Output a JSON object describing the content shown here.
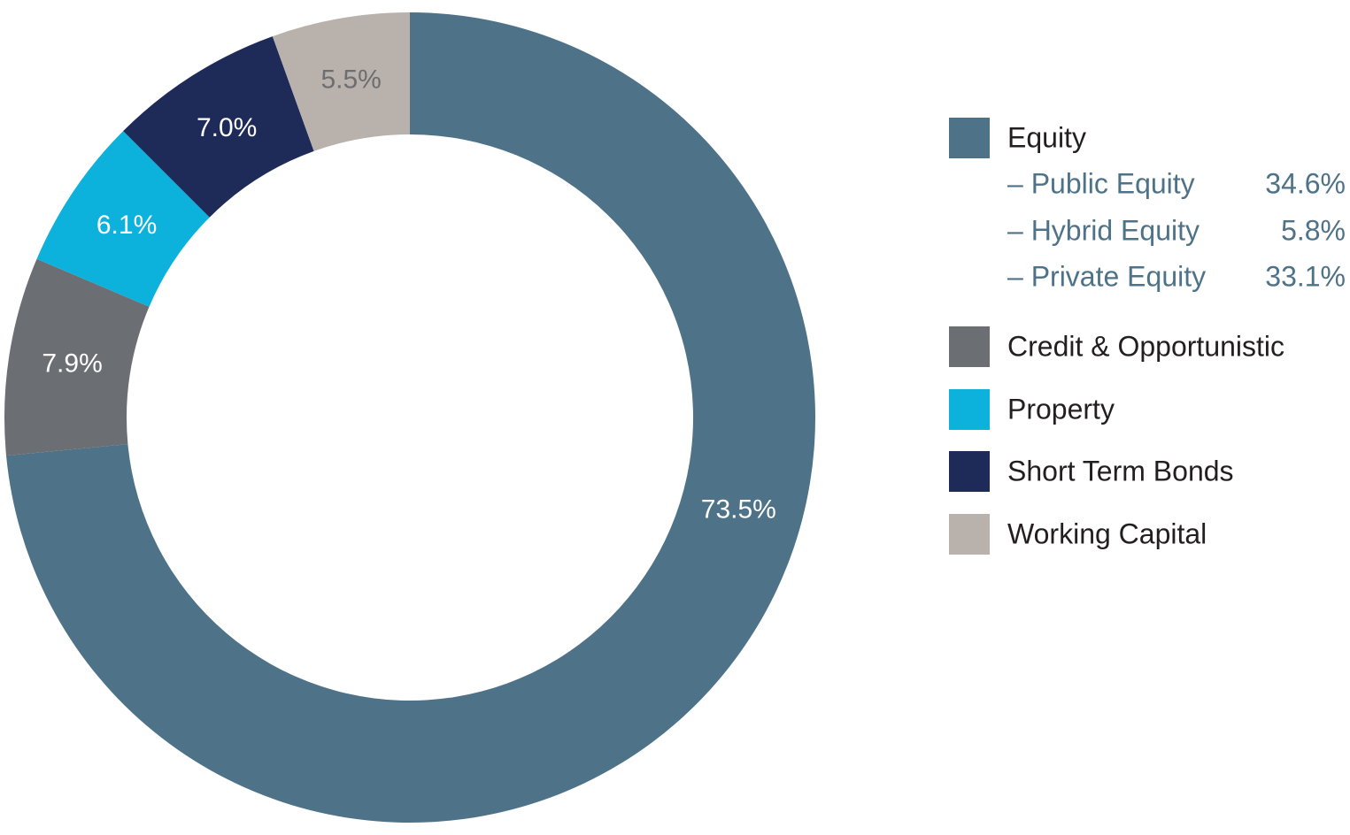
{
  "chart_data": {
    "type": "donut",
    "categories": [
      "Equity",
      "Credit & Opportunistic",
      "Property",
      "Short Term Bonds",
      "Working Capital"
    ],
    "values": [
      73.5,
      7.9,
      6.1,
      7.0,
      5.5
    ],
    "value_labels": [
      "73.5%",
      "7.9%",
      "6.1%",
      "7.0%",
      "5.5%"
    ],
    "colors": [
      "#4e7287",
      "#6b6e73",
      "#0cb1dc",
      "#1e2b59",
      "#b9b1ac"
    ],
    "label_colors": [
      "#ffffff",
      "#ffffff",
      "#ffffff",
      "#ffffff",
      "#6d6e70"
    ],
    "equity_breakdown": {
      "names": [
        "– Public Equity",
        "– Hybrid Equity",
        "– Private Equity"
      ],
      "values": [
        34.6,
        5.8,
        33.1
      ],
      "value_labels": [
        "34.6%",
        "5.8%",
        "33.1%"
      ]
    }
  }
}
